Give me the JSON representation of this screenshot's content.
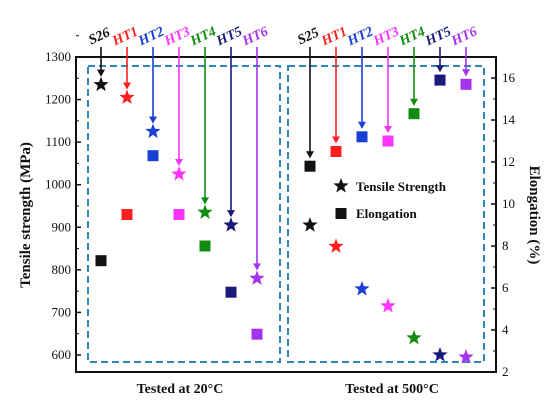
{
  "chart_data": {
    "type": "scatter",
    "title": "",
    "ylabel": "Tensile strength (MPa)",
    "y2label": "Elongation (%)",
    "ylim": [
      560,
      1300
    ],
    "y2lim": [
      2,
      17
    ],
    "yticks": [
      600,
      700,
      800,
      900,
      1000,
      1100,
      1200,
      1300
    ],
    "y2ticks": [
      2,
      4,
      6,
      8,
      10,
      12,
      14,
      16
    ],
    "groups": [
      "Tested at 20°C",
      "Tested at 500°C"
    ],
    "samples_20C": [
      "S26",
      "HT1",
      "HT2",
      "HT3",
      "HT4",
      "HT5",
      "HT6"
    ],
    "samples_500C": [
      "S25",
      "HT1",
      "HT2",
      "HT3",
      "HT4",
      "HT5",
      "HT6"
    ],
    "colors": [
      "#111111",
      "#ff1f1f",
      "#1a3fd6",
      "#ff33ff",
      "#118c11",
      "#1a1a7a",
      "#a433ee"
    ],
    "series": [
      {
        "name": "Tensile Strength",
        "marker": "star",
        "axis": "left",
        "values_20C": [
          1235,
          1205,
          1125,
          1025,
          935,
          905,
          780
        ],
        "values_500C": [
          905,
          855,
          755,
          715,
          640,
          600,
          595
        ]
      },
      {
        "name": "Elongation",
        "marker": "square",
        "axis": "right",
        "values_20C": [
          7.3,
          9.5,
          12.3,
          9.5,
          8.0,
          5.8,
          3.8
        ],
        "values_500C": [
          11.8,
          12.5,
          13.2,
          13.0,
          14.3,
          15.9,
          15.7
        ]
      }
    ],
    "legend_position": "inside-right",
    "grid": false
  }
}
